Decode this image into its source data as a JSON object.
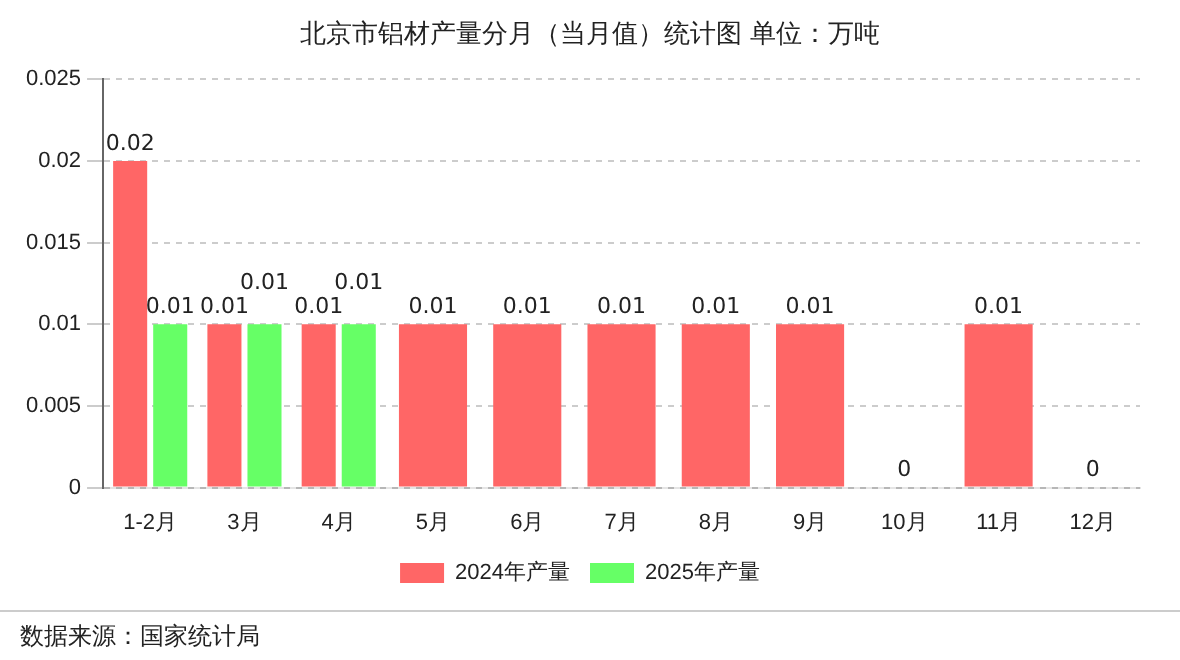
{
  "chart_data": {
    "type": "bar",
    "title": "北京市铝材产量分月（当月值）统计图 单位：万吨",
    "categories": [
      "1-2月",
      "3月",
      "4月",
      "5月",
      "6月",
      "7月",
      "8月",
      "9月",
      "10月",
      "11月",
      "12月"
    ],
    "series": [
      {
        "name": "2024年产量",
        "color": "#ff6666",
        "values": [
          0.02,
          0.01,
          0.01,
          0.01,
          0.01,
          0.01,
          0.01,
          0.01,
          0,
          0.01,
          0
        ]
      },
      {
        "name": "2025年产量",
        "color": "#66ff66",
        "values": [
          0.01,
          0.01,
          0.01,
          null,
          null,
          null,
          null,
          null,
          null,
          null,
          null
        ]
      }
    ],
    "ylim": [
      0,
      0.025
    ],
    "yticks": [
      0,
      0.005,
      0.01,
      0.015,
      0.02,
      0.025
    ],
    "grid": "y",
    "legend": "bottom",
    "data_labels": true,
    "annotations": [
      "数据来源：国家统计局"
    ]
  }
}
